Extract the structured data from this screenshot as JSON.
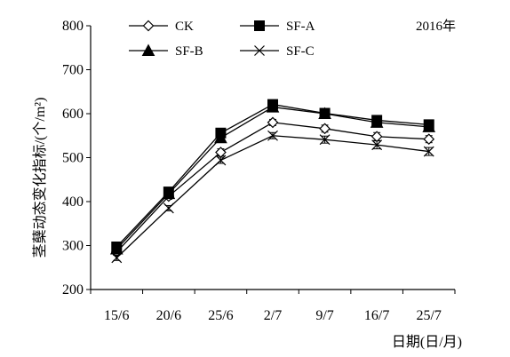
{
  "chart_data": {
    "type": "line",
    "annotation": "2016年",
    "ylabel": "茎蘖动态变化指标/(个/m²)",
    "xlabel": "日期(日/月)",
    "categories": [
      "15/6",
      "20/6",
      "25/6",
      "2/7",
      "9/7",
      "16/7",
      "25/7"
    ],
    "ylim": [
      200,
      800
    ],
    "yticks": [
      200,
      300,
      400,
      500,
      600,
      700,
      800
    ],
    "grid": false,
    "legend_position": "top-left",
    "series": [
      {
        "name": "CK",
        "marker": "diamond-open",
        "values": [
          285,
          412,
          512,
          580,
          566,
          548,
          542
        ],
        "errors": [
          6,
          7,
          8,
          7,
          8,
          9,
          8
        ]
      },
      {
        "name": "SF-A",
        "marker": "square-filled",
        "values": [
          297,
          422,
          556,
          621,
          601,
          585,
          575
        ],
        "errors": [
          6,
          7,
          7,
          7,
          8,
          10,
          9
        ]
      },
      {
        "name": "SF-B",
        "marker": "triangle-filled",
        "values": [
          292,
          418,
          545,
          615,
          600,
          580,
          570
        ],
        "errors": [
          6,
          7,
          7,
          7,
          8,
          9,
          8
        ]
      },
      {
        "name": "SF-C",
        "marker": "x",
        "values": [
          272,
          385,
          494,
          550,
          541,
          529,
          514
        ],
        "errors": [
          6,
          6,
          7,
          7,
          8,
          9,
          9
        ]
      }
    ]
  }
}
